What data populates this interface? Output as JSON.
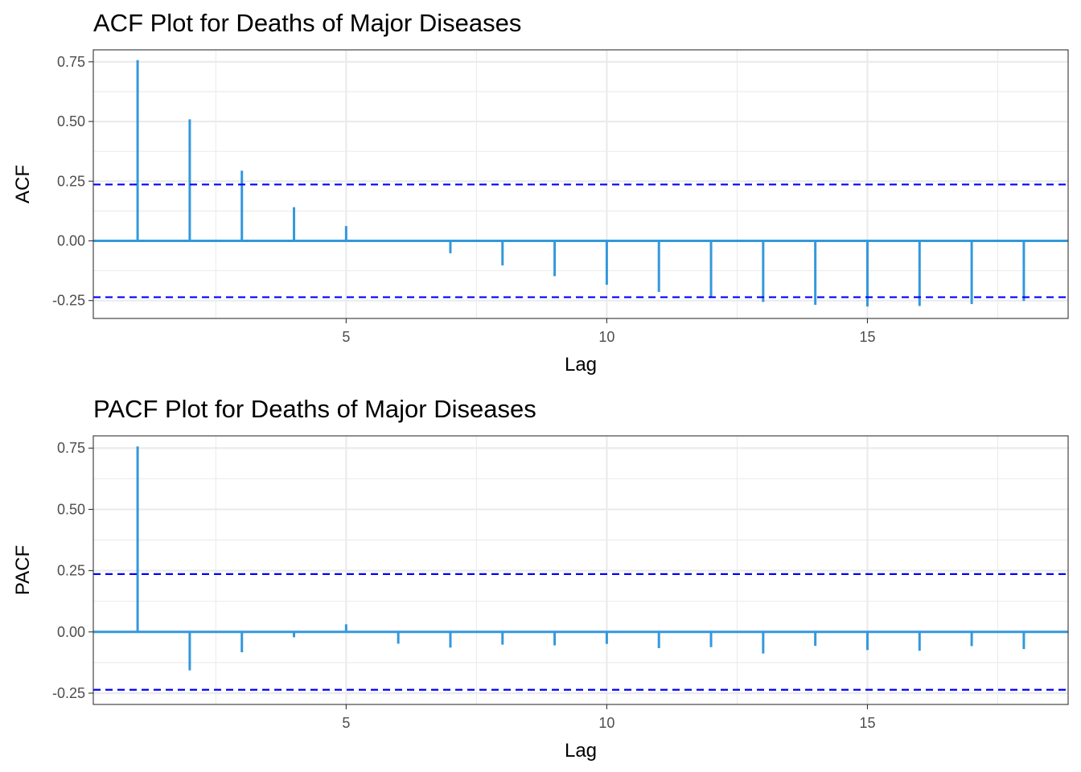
{
  "colors": {
    "bar": "#3498db",
    "baseline": "#3498db",
    "conf_line": "#0000ff",
    "grid": "#ebebeb",
    "text": "#4d4d4d"
  },
  "chart_data": [
    {
      "type": "bar",
      "title": "ACF Plot for Deaths of Major Diseases",
      "xlabel": "Lag",
      "ylabel": "ACF",
      "xlim": [
        0.15,
        18.85
      ],
      "ylim": [
        -0.325,
        0.8
      ],
      "x_ticks": [
        5,
        10,
        15
      ],
      "x_tick_labels": [
        "5",
        "10",
        "15"
      ],
      "y_ticks": [
        -0.25,
        0,
        0.25,
        0.5,
        0.75
      ],
      "y_tick_labels": [
        "-0.25",
        "0.00",
        "0.25",
        "0.50",
        "0.75"
      ],
      "grid": true,
      "confidence_bounds": [
        0.236,
        -0.236
      ],
      "lags": [
        1,
        2,
        3,
        4,
        5,
        6,
        7,
        8,
        9,
        10,
        11,
        12,
        13,
        14,
        15,
        16,
        17,
        18
      ],
      "values": [
        0.757,
        0.509,
        0.294,
        0.141,
        0.062,
        -0.001,
        -0.052,
        -0.103,
        -0.148,
        -0.184,
        -0.214,
        -0.234,
        -0.256,
        -0.268,
        -0.275,
        -0.273,
        -0.265,
        -0.252
      ]
    },
    {
      "type": "bar",
      "title": "PACF Plot for Deaths of Major Diseases",
      "xlabel": "Lag",
      "ylabel": "PACF",
      "xlim": [
        0.15,
        18.85
      ],
      "ylim": [
        -0.296,
        0.8
      ],
      "x_ticks": [
        5,
        10,
        15
      ],
      "x_tick_labels": [
        "5",
        "10",
        "15"
      ],
      "y_ticks": [
        -0.25,
        0,
        0.25,
        0.5,
        0.75
      ],
      "y_tick_labels": [
        "-0.25",
        "0.00",
        "0.25",
        "0.50",
        "0.75"
      ],
      "grid": true,
      "confidence_bounds": [
        0.236,
        -0.236
      ],
      "lags": [
        1,
        2,
        3,
        4,
        5,
        6,
        7,
        8,
        9,
        10,
        11,
        12,
        13,
        14,
        15,
        16,
        17,
        18
      ],
      "values": [
        0.757,
        -0.157,
        -0.083,
        -0.022,
        0.031,
        -0.048,
        -0.064,
        -0.052,
        -0.055,
        -0.049,
        -0.066,
        -0.062,
        -0.088,
        -0.057,
        -0.074,
        -0.077,
        -0.058,
        -0.07
      ]
    }
  ]
}
